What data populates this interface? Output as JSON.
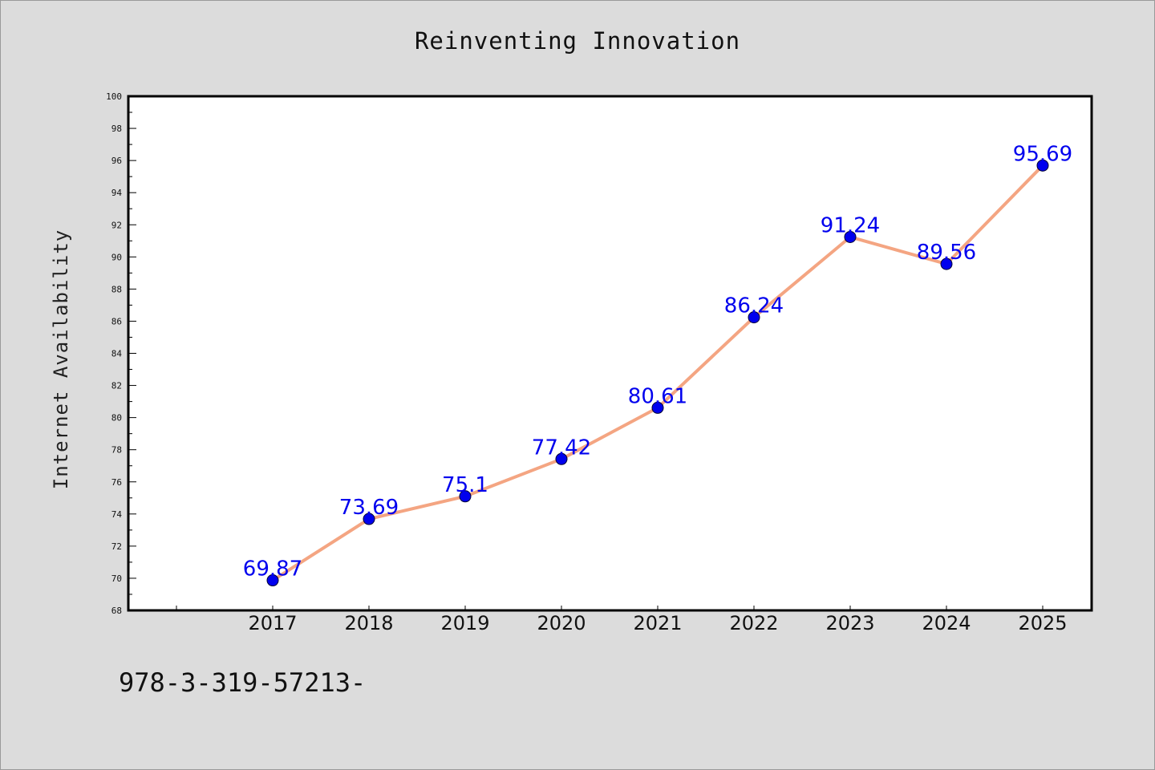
{
  "title": "Reinventing Innovation",
  "footer": "978-3-319-57213-",
  "colors": {
    "background": "#dcdcdc",
    "plot_background": "#ffffff",
    "line": "#f4a582",
    "marker": "#0000ee",
    "label": "#0000ee"
  },
  "chart_data": {
    "type": "line",
    "title": "Reinventing Innovation",
    "xlabel": "",
    "ylabel": "Internet Availability",
    "categories": [
      "2017",
      "2018",
      "2019",
      "2020",
      "2021",
      "2022",
      "2023",
      "2024",
      "2025"
    ],
    "series": [
      {
        "values": [
          69.87,
          73.69,
          75.1,
          77.42,
          80.61,
          86.24,
          91.24,
          89.56,
          95.69
        ],
        "labels": [
          "69.87",
          "73.69",
          "75.1",
          "77.42",
          "80.61",
          "86.24",
          "91.24",
          "89.56",
          "95.69"
        ]
      }
    ],
    "ylim": [
      68,
      100
    ],
    "yticks": [
      "68",
      "70",
      "72",
      "74",
      "76",
      "78",
      "80",
      "82",
      "84",
      "86",
      "88",
      "90",
      "92",
      "94",
      "96",
      "98",
      "100"
    ],
    "grid": false,
    "legend": "none",
    "markers": true,
    "data_labels": true
  }
}
